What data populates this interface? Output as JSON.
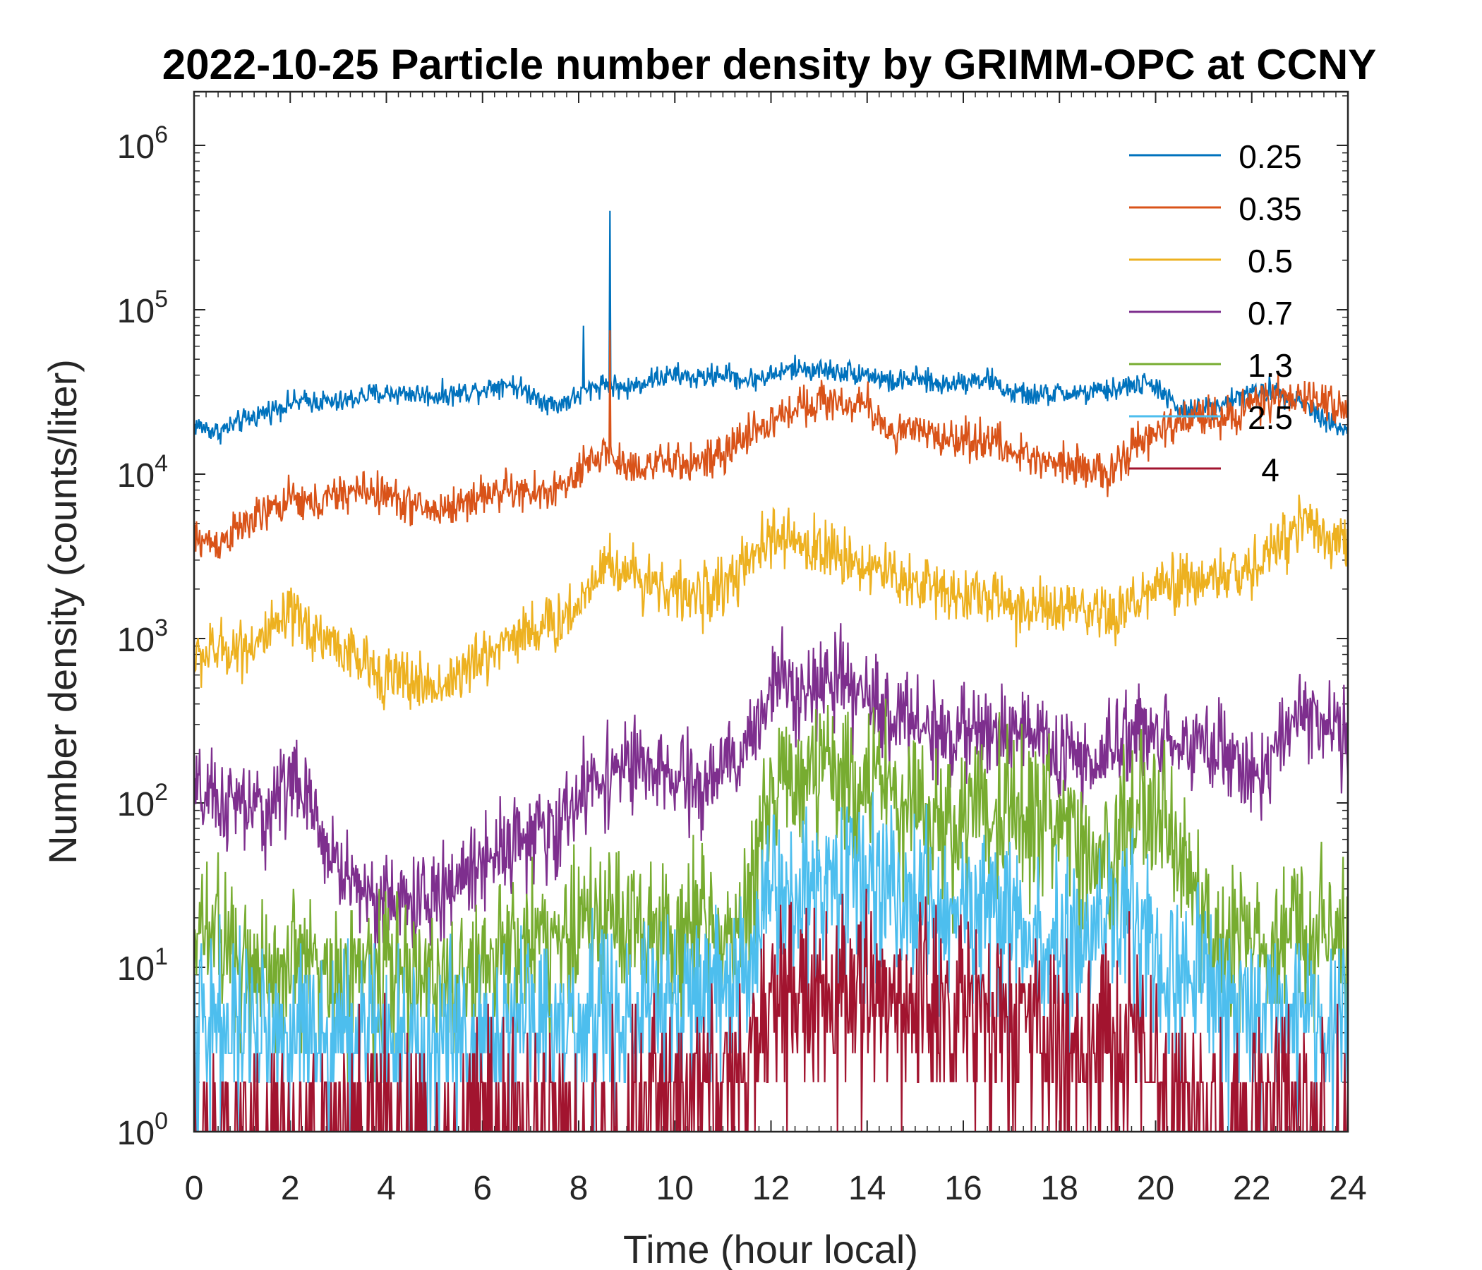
{
  "chart_data": {
    "type": "line",
    "title": "2022-10-25 Particle number density by GRIMM-OPC at CCNY",
    "xlabel": "Time (hour local)",
    "ylabel": "Number density (counts/liter)",
    "xlim": [
      0,
      24
    ],
    "ylim": [
      1,
      2000000
    ],
    "yscale": "log",
    "xticks": [
      0,
      2,
      4,
      6,
      8,
      10,
      12,
      14,
      16,
      18,
      20,
      22,
      24
    ],
    "yticks": [
      {
        "value": 1,
        "base": "10",
        "exp": "0"
      },
      {
        "value": 10,
        "base": "10",
        "exp": "1"
      },
      {
        "value": 100,
        "base": "10",
        "exp": "2"
      },
      {
        "value": 1000,
        "base": "10",
        "exp": "3"
      },
      {
        "value": 10000,
        "base": "10",
        "exp": "4"
      },
      {
        "value": 100000,
        "base": "10",
        "exp": "5"
      },
      {
        "value": 1000000,
        "base": "10",
        "exp": "6"
      }
    ],
    "legend_location": "top-right",
    "x": [
      0,
      0.5,
      1,
      1.5,
      2,
      2.5,
      3,
      3.5,
      4,
      4.5,
      5,
      5.5,
      6,
      6.5,
      7,
      7.5,
      8,
      8.5,
      9,
      9.5,
      10,
      10.5,
      11,
      11.5,
      12,
      12.5,
      13,
      13.5,
      14,
      14.5,
      15,
      15.5,
      16,
      16.5,
      17,
      17.5,
      18,
      18.5,
      19,
      19.5,
      20,
      20.5,
      21,
      21.5,
      22,
      22.5,
      23,
      23.5,
      24
    ],
    "series": [
      {
        "name": "0.25",
        "color": "#0072BD",
        "values": [
          20000,
          18000,
          21000,
          24000,
          27000,
          28000,
          27000,
          30000,
          31000,
          31000,
          30000,
          31000,
          33000,
          36000,
          31000,
          26000,
          30000,
          36000,
          33000,
          38000,
          40000,
          38000,
          41000,
          37000,
          40000,
          44000,
          43000,
          42000,
          41000,
          36000,
          38000,
          35000,
          37000,
          38000,
          31000,
          30000,
          31000,
          31000,
          32000,
          35000,
          35000,
          24000,
          25000,
          28000,
          31000,
          32000,
          28000,
          22000,
          18000
        ]
      },
      {
        "name": "0.35",
        "color": "#D95319",
        "values": [
          4000,
          3800,
          4800,
          5800,
          7000,
          6500,
          7500,
          8000,
          7500,
          6500,
          6000,
          6500,
          7500,
          8000,
          7500,
          8000,
          9500,
          14000,
          11000,
          11500,
          11500,
          12000,
          12500,
          18000,
          20000,
          26000,
          28000,
          27000,
          26000,
          18000,
          18000,
          17000,
          16000,
          16500,
          13500,
          12500,
          12000,
          11500,
          9500,
          14000,
          18000,
          20000,
          24000,
          22000,
          27000,
          28000,
          29000,
          28000,
          26000
        ]
      },
      {
        "name": "0.5",
        "color": "#EDB120",
        "values": [
          750,
          850,
          900,
          1000,
          1350,
          1100,
          900,
          700,
          600,
          550,
          500,
          600,
          750,
          1000,
          1150,
          1200,
          1600,
          3000,
          2500,
          2300,
          1900,
          1800,
          2100,
          2700,
          4200,
          3800,
          3500,
          3200,
          2800,
          2400,
          2200,
          2000,
          1900,
          1800,
          1600,
          1500,
          1500,
          1400,
          1300,
          1600,
          2000,
          2100,
          2300,
          2400,
          2600,
          3500,
          5500,
          4500,
          3500
        ]
      },
      {
        "name": "0.7",
        "color": "#7E2F8E",
        "values": [
          110,
          100,
          95,
          85,
          150,
          80,
          40,
          30,
          25,
          25,
          25,
          35,
          45,
          60,
          60,
          65,
          110,
          150,
          170,
          150,
          140,
          120,
          160,
          200,
          550,
          550,
          520,
          500,
          420,
          350,
          320,
          260,
          270,
          250,
          300,
          260,
          200,
          170,
          180,
          300,
          260,
          230,
          240,
          190,
          150,
          180,
          400,
          300,
          240
        ]
      },
      {
        "name": "1.3",
        "color": "#77AC30",
        "values": [
          18,
          14,
          12,
          10,
          12,
          10,
          9,
          9,
          10,
          10,
          9,
          9,
          10,
          14,
          15,
          18,
          19,
          20,
          19,
          18,
          17,
          19,
          20,
          18,
          150,
          150,
          160,
          150,
          140,
          120,
          100,
          95,
          80,
          95,
          100,
          90,
          70,
          50,
          40,
          90,
          100,
          55,
          20,
          15,
          17,
          16,
          18,
          17,
          15
        ]
      },
      {
        "name": "2.5",
        "color": "#4DBEEE",
        "values": [
          4,
          5,
          4,
          4,
          4,
          5,
          4,
          4,
          4,
          4,
          4,
          4,
          4,
          4,
          5,
          4,
          5,
          5,
          5,
          6,
          6,
          7,
          8,
          10,
          25,
          30,
          32,
          35,
          35,
          30,
          25,
          25,
          23,
          25,
          20,
          15,
          15,
          15,
          20,
          22,
          12,
          10,
          8,
          6,
          6,
          6,
          6,
          5,
          5
        ]
      },
      {
        "name": "4",
        "color": "#A2142F",
        "values": [
          1,
          1,
          1,
          1,
          1,
          1,
          1,
          1,
          1,
          1,
          1,
          1,
          1,
          1,
          1,
          1,
          1,
          1,
          1.2,
          1.5,
          1.5,
          1.8,
          2,
          1.8,
          6,
          6,
          7,
          8,
          10,
          8,
          6,
          5,
          5,
          5,
          4,
          4,
          3,
          3,
          4,
          4,
          2.5,
          1.5,
          1.2,
          1.2,
          1.5,
          1.5,
          1.5,
          1.2,
          1
        ]
      }
    ]
  }
}
